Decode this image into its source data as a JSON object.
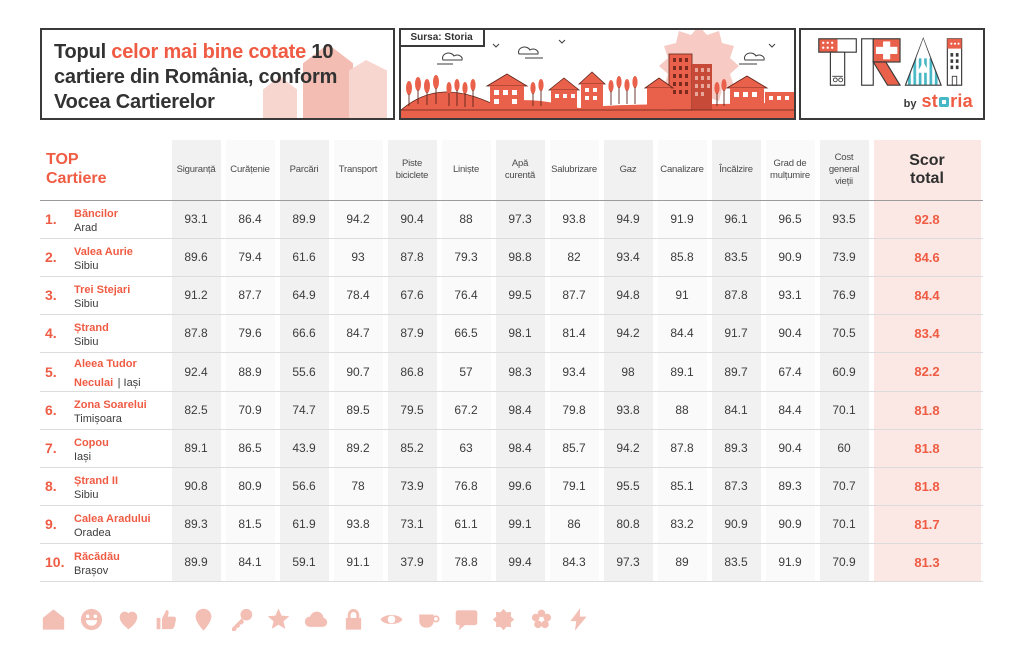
{
  "header": {
    "title": {
      "prefix": "Topul ",
      "highlight": "celor mai bine cotate",
      "rest": " 10 cartiere din România, conform Vocea Cartierelor"
    },
    "source_badge": "Sursa: Storia",
    "logo": {
      "title": "TRAI",
      "by": "by",
      "brand": "storia"
    }
  },
  "table": {
    "first_col_header": "TOP Cartiere",
    "score_col_header": "Scor total"
  },
  "chart_data": {
    "type": "table",
    "title": "Topul celor mai bine cotate 10 cartiere din România, conform Vocea Cartierelor",
    "columns": [
      "Siguranță",
      "Curățenie",
      "Parcări",
      "Transport",
      "Piste biciclete",
      "Liniște",
      "Apă curentă",
      "Salubrizare",
      "Gaz",
      "Canalizare",
      "Încălzire",
      "Grad de mulțumire",
      "Cost general vieții"
    ],
    "rows": [
      {
        "rank": "1.",
        "name": "Băncilor",
        "city": "Arad",
        "values": [
          93.1,
          86.4,
          89.9,
          94.2,
          90.4,
          88,
          97.3,
          93.8,
          94.9,
          91.9,
          96.1,
          96.5,
          93.5
        ],
        "total": "92.8"
      },
      {
        "rank": "2.",
        "name": "Valea Aurie",
        "city": "Sibiu",
        "values": [
          89.6,
          79.4,
          61.6,
          93,
          87.8,
          79.3,
          98.8,
          82,
          93.4,
          85.8,
          83.5,
          90.9,
          73.9
        ],
        "total": "84.6"
      },
      {
        "rank": "3.",
        "name": "Trei Stejari",
        "city": "Sibiu",
        "values": [
          91.2,
          87.7,
          64.9,
          78.4,
          67.6,
          76.4,
          99.5,
          87.7,
          94.8,
          91,
          87.8,
          93.1,
          76.9
        ],
        "total": "84.4"
      },
      {
        "rank": "4.",
        "name": "Ștrand",
        "city": "Sibiu",
        "values": [
          87.8,
          79.6,
          66.6,
          84.7,
          87.9,
          66.5,
          98.1,
          81.4,
          94.2,
          84.4,
          91.7,
          90.4,
          70.5
        ],
        "total": "83.4"
      },
      {
        "rank": "5.",
        "name": "Aleea Tudor Neculai",
        "city": "| Iași",
        "values": [
          92.4,
          88.9,
          55.6,
          90.7,
          86.8,
          57,
          98.3,
          93.4,
          98,
          89.1,
          89.7,
          67.4,
          60.9
        ],
        "total": "82.2"
      },
      {
        "rank": "6.",
        "name": "Zona Soarelui",
        "city": "Timișoara",
        "values": [
          82.5,
          70.9,
          74.7,
          89.5,
          79.5,
          67.2,
          98.4,
          79.8,
          93.8,
          88,
          84.1,
          84.4,
          70.1
        ],
        "total": "81.8"
      },
      {
        "rank": "7.",
        "name": "Copou",
        "city": "Iași",
        "values": [
          89.1,
          86.5,
          43.9,
          89.2,
          85.2,
          63,
          98.4,
          85.7,
          94.2,
          87.8,
          89.3,
          90.4,
          60
        ],
        "total": "81.8"
      },
      {
        "rank": "8.",
        "name": "Ștrand II",
        "city": "Sibiu",
        "values": [
          90.8,
          80.9,
          56.6,
          78,
          73.9,
          76.8,
          99.6,
          79.1,
          95.5,
          85.1,
          87.3,
          89.3,
          70.7
        ],
        "total": "81.8"
      },
      {
        "rank": "9.",
        "name": "Calea Aradului",
        "city": "Oradea",
        "values": [
          89.3,
          81.5,
          61.9,
          93.8,
          73.1,
          61.1,
          99.1,
          86,
          80.8,
          83.2,
          90.9,
          90.9,
          70.1
        ],
        "total": "81.7"
      },
      {
        "rank": "10.",
        "name": "Răcădău",
        "city": "Brașov",
        "values": [
          89.9,
          84.1,
          59.1,
          91.1,
          37.9,
          78.8,
          99.4,
          84.3,
          97.3,
          89,
          83.5,
          91.9,
          70.9
        ],
        "total": "81.3"
      }
    ]
  },
  "footer_icons": [
    "house-icon",
    "smiley-icon",
    "heart-icon",
    "thumbs-up-icon",
    "location-pin-icon",
    "key-icon",
    "star-icon",
    "cloud-icon",
    "lock-icon",
    "eye-icon",
    "cup-icon",
    "speech-bubble-icon",
    "sun-burst-icon",
    "flower-icon",
    "lightning-icon"
  ],
  "colors": {
    "brand_red": "#EF5B43",
    "illustration_red": "#EA614B",
    "pale_pink": "#F3BFB5",
    "score_bg": "#FBE7E3",
    "teal": "#46B7C4",
    "dark_text": "#323232",
    "column_gray": "#F1F1F1",
    "column_light": "#FAFAFA"
  }
}
